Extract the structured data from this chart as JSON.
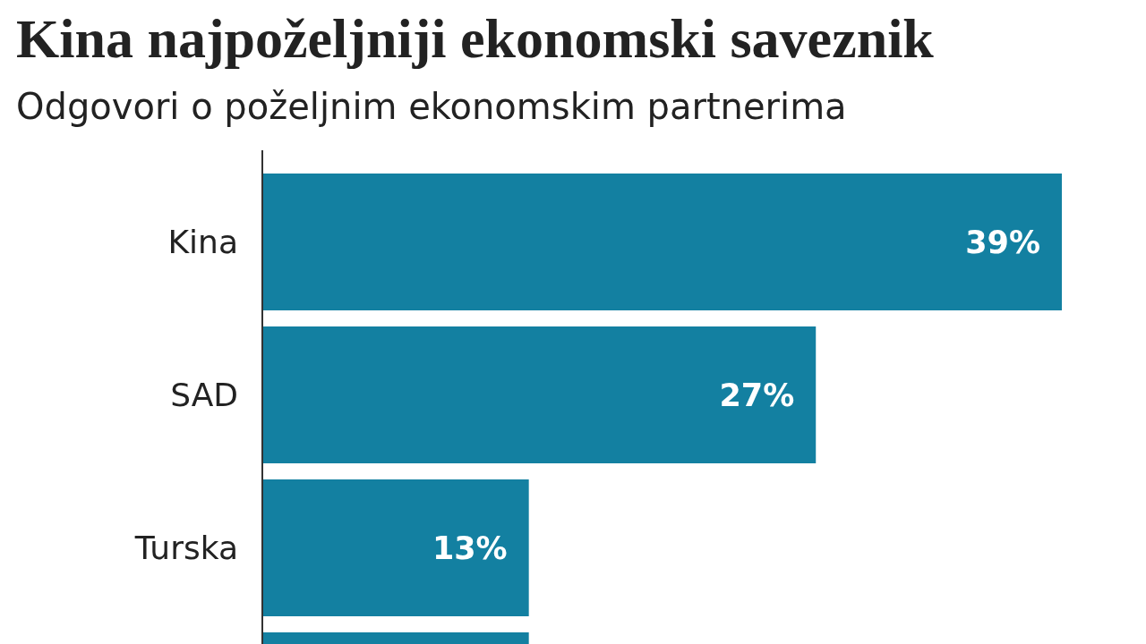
{
  "chart_data": {
    "type": "bar",
    "orientation": "horizontal",
    "title": "Kina najpoželjniji ekonomski saveznik",
    "subtitle": "Odgovori o poželjnim ekonomskim partnerima",
    "categories": [
      "Kina",
      "SAD",
      "Turska",
      null
    ],
    "values": [
      39,
      27,
      13,
      13
    ],
    "value_labels": [
      "39%",
      "27%",
      "13%",
      null
    ],
    "color": "#1380a1"
  }
}
